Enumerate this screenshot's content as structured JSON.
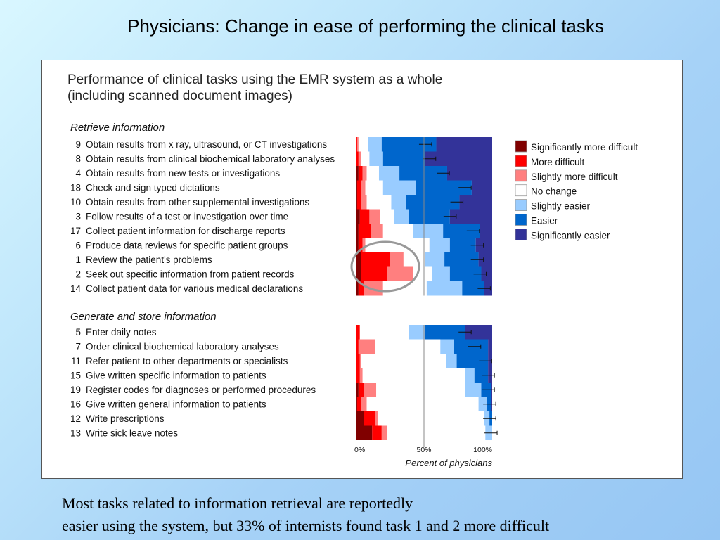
{
  "slide": {
    "title": "Physicians: Change in ease of performing the clinical tasks",
    "caption_line1": "Most tasks related to information retrieval are reportedly",
    "caption_line2": "easier using the system, but 33% of internists found task 1 and 2 more difficult"
  },
  "chart_data": {
    "type": "bar",
    "orientation": "horizontal-stacked-100",
    "title_line1": "Performance of clinical tasks using the EMR system as a whole",
    "title_line2": "(including scanned document images)",
    "xlabel": "Percent of physicians",
    "x_ticks": [
      "0%",
      "50%",
      "100%"
    ],
    "xlim": [
      0,
      100
    ],
    "legend_position": "right",
    "series": [
      {
        "name": "Significantly more difficult",
        "color": "#800000"
      },
      {
        "name": "More difficult",
        "color": "#ff0000"
      },
      {
        "name": "Slightly more difficult",
        "color": "#ff7f7f"
      },
      {
        "name": "No change",
        "color": "#ffffff"
      },
      {
        "name": "Slightly easier",
        "color": "#99ccff"
      },
      {
        "name": "Easier",
        "color": "#0066cc"
      },
      {
        "name": "Significantly easier",
        "color": "#333399"
      }
    ],
    "groups": [
      {
        "label": "Retrieve information",
        "tasks": [
          {
            "num": "9",
            "label": "Obtain results from x ray, ultrasound, or CT investigations",
            "values": [
              0,
              1,
              1,
              7,
              10,
              40,
              41
            ],
            "err": 51
          },
          {
            "num": "8",
            "label": "Obtain results from clinical biochemical laboratory analyses",
            "values": [
              0,
              2,
              2,
              6,
              10,
              31,
              49
            ],
            "err": 54
          },
          {
            "num": "4",
            "label": "Obtain results from new tests or investigations",
            "values": [
              2,
              3,
              3,
              9,
              15,
              35,
              33
            ],
            "err": 64
          },
          {
            "num": "18",
            "label": "Check and sign typed dictations",
            "values": [
              1,
              3,
              3,
              13,
              24,
              41,
              15
            ],
            "err": 80
          },
          {
            "num": "10",
            "label": "Obtain results from other supplemental investigations",
            "values": [
              1,
              3,
              4,
              18,
              11,
              39,
              24
            ],
            "err": 74
          },
          {
            "num": "3",
            "label": "Follow results of a test or investigation over time",
            "values": [
              3,
              7,
              8,
              10,
              11,
              30,
              31
            ],
            "err": 69
          },
          {
            "num": "17",
            "label": "Collect patient information for discharge reports",
            "values": [
              2,
              9,
              9,
              22,
              22,
              27,
              9
            ],
            "err": 86
          },
          {
            "num": "6",
            "label": "Produce data reviews for specific patient groups",
            "values": [
              2,
              3,
              2,
              47,
              15,
              19,
              12
            ],
            "err": 89
          },
          {
            "num": "1",
            "label": "Review the patient's problems",
            "values": [
              4,
              21,
              10,
              16,
              14,
              25,
              10
            ],
            "err": 89
          },
          {
            "num": "2",
            "label": "Seek out specific information from patient records",
            "values": [
              4,
              19,
              19,
              14,
              13,
              23,
              8
            ],
            "err": 91
          },
          {
            "num": "14",
            "label": "Collect patient data for various medical declarations",
            "values": [
              2,
              4,
              14,
              32,
              26,
              16,
              6
            ],
            "err": 94
          }
        ]
      },
      {
        "label": "Generate and store information",
        "tasks": [
          {
            "num": "5",
            "label": "Enter daily notes",
            "values": [
              0,
              3,
              0,
              36,
              12,
              29,
              20
            ],
            "err": 80
          },
          {
            "num": "7",
            "label": "Order clinical biochemical laboratory analyses",
            "values": [
              0,
              2,
              12,
              48,
              10,
              25,
              3
            ],
            "err": 87
          },
          {
            "num": "11",
            "label": "Refer patient to other departments or specialists",
            "values": [
              0,
              3,
              1,
              62,
              8,
              23,
              3
            ],
            "err": 95
          },
          {
            "num": "15",
            "label": "Give written specific information to patients",
            "values": [
              0,
              3,
              2,
              75,
              7,
              10,
              3
            ],
            "err": 97
          },
          {
            "num": "19",
            "label": "Register codes for diagnoses or performed procedures",
            "values": [
              2,
              4,
              9,
              65,
              12,
              7,
              1
            ],
            "err": 97
          },
          {
            "num": "16",
            "label": "Give written general information to patients",
            "values": [
              1,
              3,
              4,
              82,
              6,
              3,
              1
            ],
            "err": 98
          },
          {
            "num": "12",
            "label": "Write prescriptions",
            "values": [
              6,
              8,
              2,
              78,
              4,
              2,
              0
            ],
            "err": 98
          },
          {
            "num": "13",
            "label": "Write sick leave notes",
            "values": [
              12,
              7,
              4,
              72,
              5,
              0,
              0
            ],
            "err": 99
          }
        ]
      }
    ],
    "annotation": "circle highlighting tasks 1 and 2 more-difficult bars"
  }
}
